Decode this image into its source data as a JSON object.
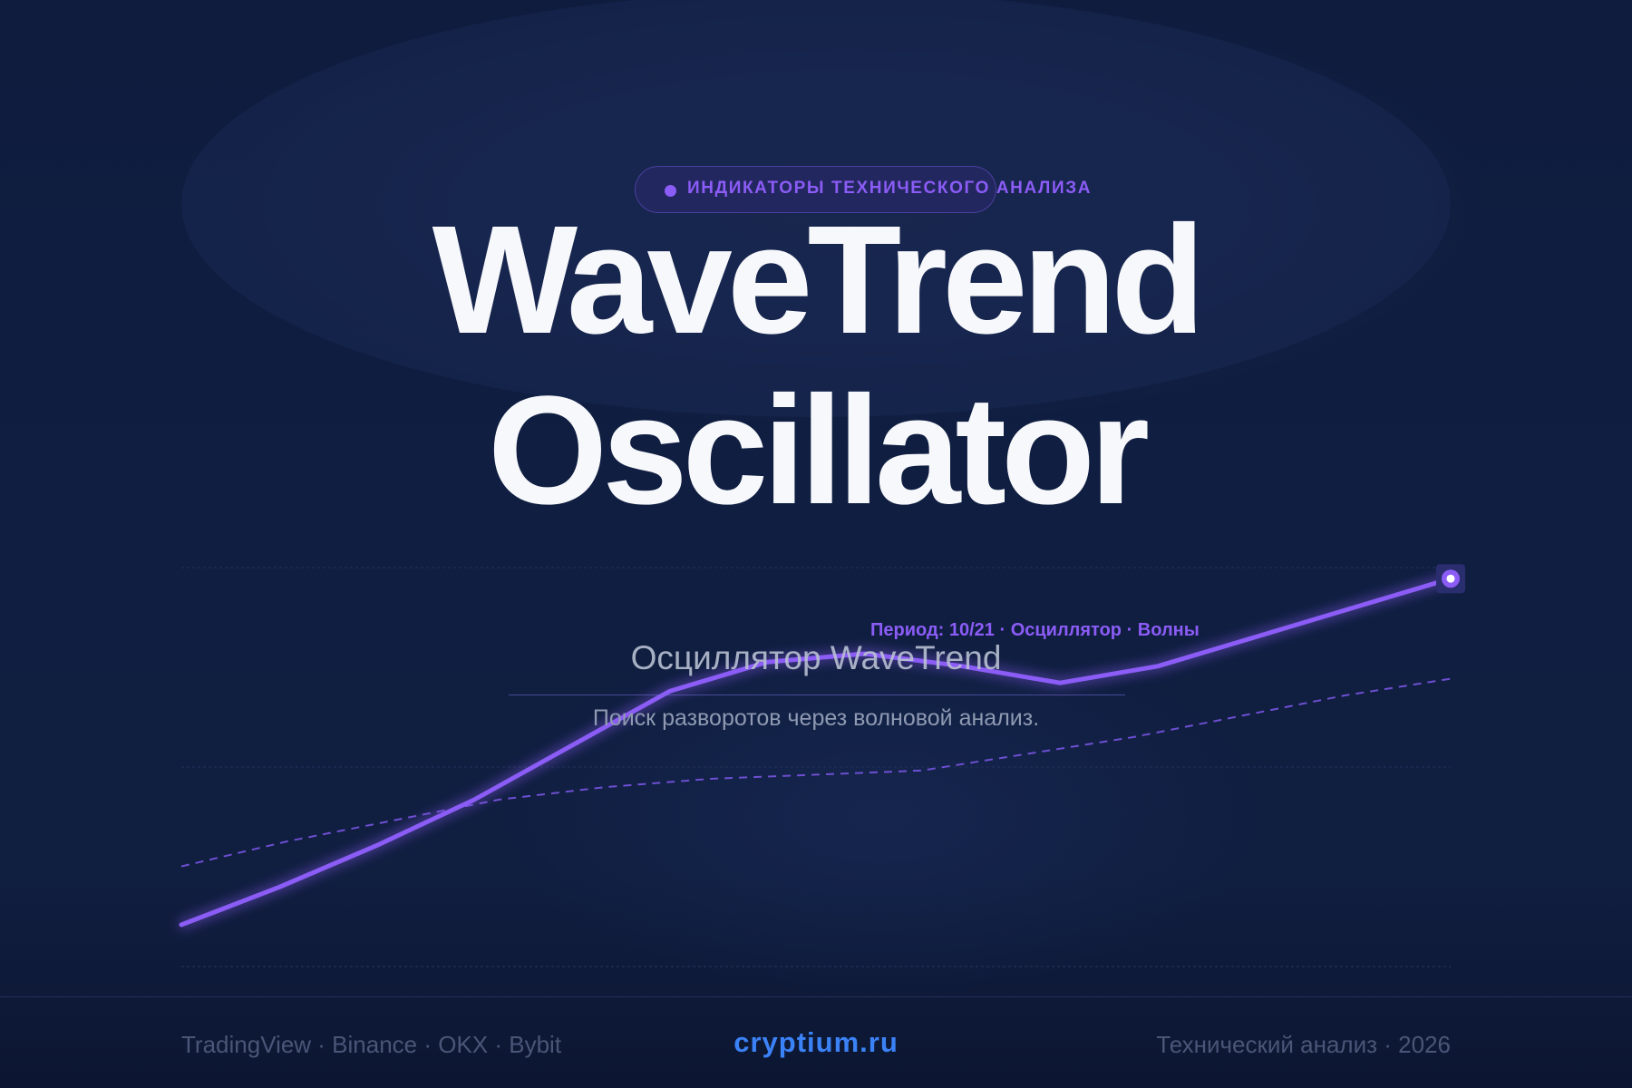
{
  "badge": {
    "label": "ИНДИКАТОРЫ ТЕХНИЧЕСКОГО АНАЛИЗА"
  },
  "title": {
    "line1": "WaveTrend",
    "line2": "Oscillator"
  },
  "overlay": {
    "title": "Осциллятор WaveTrend",
    "subtitle": "Поиск разворотов через волновой анализ.",
    "label": "Период: 10/21 · Осциллятор · Волны"
  },
  "footer": {
    "left": "TradingView · Binance · OKX · Bybit",
    "center": "cryptium.ru",
    "right": "Технический анализ · 2026"
  },
  "colors": {
    "accent": "#8b5cf6",
    "brand": "#3b82f6",
    "background": "#0f1e41",
    "title": "#f7f8fb"
  },
  "icons": {
    "badge_marker": "dot-icon",
    "chart_marker": "circle-marker-icon"
  },
  "chart_data": {
    "type": "line",
    "ylim": [
      0,
      100
    ],
    "grid": true,
    "series": [
      {
        "style": "solid",
        "values": [
          10,
          19,
          29,
          40,
          53,
          66,
          73,
          75,
          72,
          68,
          72,
          79,
          86,
          93
        ]
      },
      {
        "style": "dashed",
        "values": [
          24,
          30,
          35,
          40,
          43,
          45,
          46,
          47,
          51,
          55,
          60,
          65,
          69
        ]
      }
    ]
  }
}
